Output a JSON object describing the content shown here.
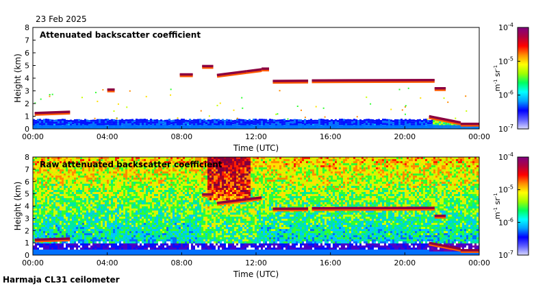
{
  "date_label": "23 Feb 2025",
  "site_label": "Harmaja CL31 ceilometer",
  "colors": {
    "cloud_core": "#8b0040",
    "cloud_edge": "#ff5a00",
    "ground_band": "#1030d0"
  },
  "chart_data": [
    {
      "type": "heatmap",
      "title": "Attenuated backscatter coefficient",
      "xlabel": "Time (UTC)",
      "ylabel": "Height (km)",
      "xlim": [
        0,
        24
      ],
      "ylim": [
        0,
        8
      ],
      "x_ticks": [
        "00:00",
        "04:00",
        "08:00",
        "12:00",
        "16:00",
        "20:00",
        "00:00"
      ],
      "y_ticks": [
        "0",
        "1",
        "2",
        "3",
        "4",
        "5",
        "6",
        "7",
        "8"
      ],
      "colorbar": {
        "label": "m-1 sr-1",
        "ticks": [
          "10-7",
          "10-6",
          "10-5",
          "10-4"
        ],
        "exponents": [
          -7,
          -6,
          -5,
          -4
        ]
      },
      "noise": "low",
      "boundary_layer_top_km": 0.75,
      "cloud_layers": [
        {
          "t_start": 0.1,
          "t_end": 2.0,
          "h_start": 1.25,
          "h_end": 1.35
        },
        {
          "t_start": 4.0,
          "t_end": 4.4,
          "h_start": 3.1,
          "h_end": 3.1
        },
        {
          "t_start": 7.9,
          "t_end": 8.6,
          "h_start": 4.3,
          "h_end": 4.3
        },
        {
          "t_start": 9.1,
          "t_end": 9.7,
          "h_start": 4.95,
          "h_end": 4.95
        },
        {
          "t_start": 9.9,
          "t_end": 11.5,
          "h_start": 4.25,
          "h_end": 4.55
        },
        {
          "t_start": 11.5,
          "t_end": 12.3,
          "h_start": 4.55,
          "h_end": 4.7
        },
        {
          "t_start": 12.3,
          "t_end": 12.7,
          "h_start": 4.75,
          "h_end": 4.75
        },
        {
          "t_start": 12.9,
          "t_end": 14.8,
          "h_start": 3.78,
          "h_end": 3.8
        },
        {
          "t_start": 15.0,
          "t_end": 21.6,
          "h_start": 3.82,
          "h_end": 3.85
        },
        {
          "t_start": 21.6,
          "t_end": 22.2,
          "h_start": 3.2,
          "h_end": 3.2
        },
        {
          "t_start": 21.3,
          "t_end": 23.0,
          "h_start": 1.0,
          "h_end": 0.5
        },
        {
          "t_start": 23.0,
          "t_end": 24.0,
          "h_start": 0.4,
          "h_end": 0.4
        }
      ]
    },
    {
      "type": "heatmap",
      "title": "Raw attenuated backscatter coefficient",
      "xlabel": "Time (UTC)",
      "ylabel": "Height (km)",
      "xlim": [
        0,
        24
      ],
      "ylim": [
        0,
        8
      ],
      "x_ticks": [
        "00:00",
        "04:00",
        "08:00",
        "12:00",
        "16:00",
        "20:00",
        "00:00"
      ],
      "y_ticks": [
        "0",
        "1",
        "2",
        "3",
        "4",
        "5",
        "6",
        "7",
        "8"
      ],
      "colorbar": {
        "label": "m-1 sr-1",
        "ticks": [
          "10-7",
          "10-6",
          "10-5",
          "10-4"
        ],
        "exponents": [
          -7,
          -6,
          -5,
          -4
        ]
      },
      "noise": "high",
      "boundary_layer_top_km": 0.75,
      "cloud_layers": [
        {
          "t_start": 0.1,
          "t_end": 2.0,
          "h_start": 1.25,
          "h_end": 1.35
        },
        {
          "t_start": 9.1,
          "t_end": 9.7,
          "h_start": 4.95,
          "h_end": 4.95
        },
        {
          "t_start": 9.9,
          "t_end": 11.5,
          "h_start": 4.25,
          "h_end": 4.55
        },
        {
          "t_start": 11.5,
          "t_end": 12.3,
          "h_start": 4.55,
          "h_end": 4.7
        },
        {
          "t_start": 12.9,
          "t_end": 14.8,
          "h_start": 3.78,
          "h_end": 3.8
        },
        {
          "t_start": 15.0,
          "t_end": 21.6,
          "h_start": 3.82,
          "h_end": 3.85
        },
        {
          "t_start": 21.6,
          "t_end": 22.2,
          "h_start": 3.2,
          "h_end": 3.2
        },
        {
          "t_start": 21.3,
          "t_end": 23.0,
          "h_start": 1.0,
          "h_end": 0.5
        },
        {
          "t_start": 23.0,
          "t_end": 24.0,
          "h_start": 0.4,
          "h_end": 0.4
        }
      ]
    }
  ]
}
